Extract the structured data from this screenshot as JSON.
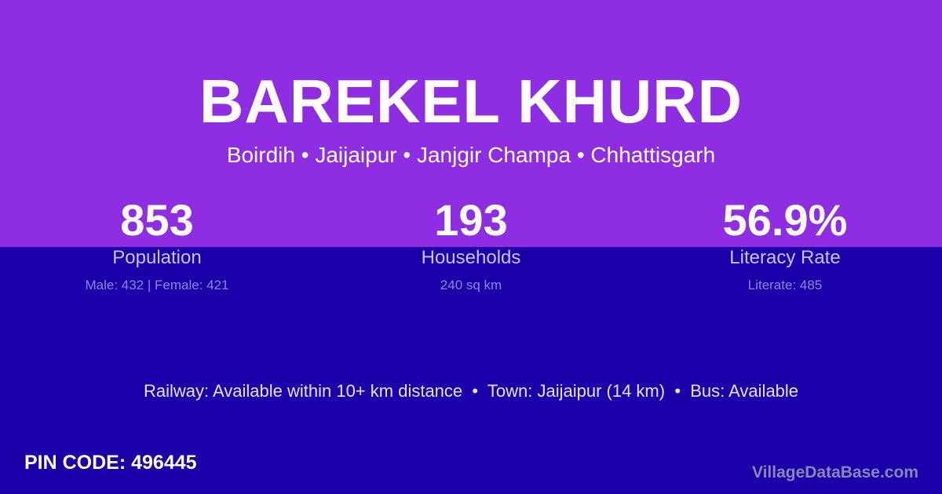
{
  "colors": {
    "top_band": "#8e2de2",
    "background": "#1b00aa",
    "brand": "#8a86b8"
  },
  "village": {
    "name": "BAREKEL KHURD",
    "location": "Boirdih • Jaijaipur • Janjgir Champa • Chhattisgarh"
  },
  "stats": [
    {
      "value": "853",
      "label": "Population",
      "detail": "Male: 432 | Female: 421"
    },
    {
      "value": "193",
      "label": "Households",
      "detail": "240 sq km"
    },
    {
      "value": "56.9%",
      "label": "Literacy Rate",
      "detail": "Literate: 485"
    }
  ],
  "info": "Railway: Available within 10+ km distance  •  Town: Jaijaipur (14 km)  •  Bus: Available",
  "pin": "PIN CODE: 496445",
  "brand": "VillageDataBase.com"
}
